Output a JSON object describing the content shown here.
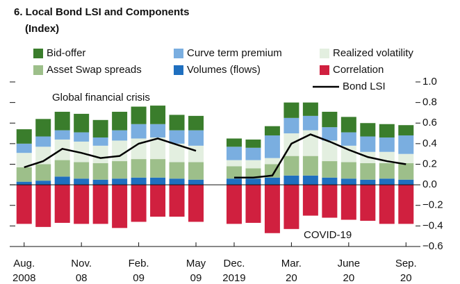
{
  "chart_data": {
    "type": "bar",
    "title": "6. Local Bond LSI and Components",
    "subtitle": "(Index)",
    "annotations": [
      "Global financial crisis",
      "COVID-19"
    ],
    "categories": [
      "Aug.\n2008",
      null,
      null,
      "Nov.\n08",
      null,
      null,
      "Feb.\n09",
      null,
      null,
      "May\n09",
      null,
      "Dec.\n2019",
      null,
      null,
      "Mar.\n20",
      null,
      null,
      "June\n20",
      null,
      null,
      "Sep.\n20"
    ],
    "ylim": [
      -0.6,
      1.0
    ],
    "yticks": [
      {
        "value": -0.6,
        "label": "−0.6"
      },
      {
        "value": -0.4,
        "label": "−0.4"
      },
      {
        "value": -0.2,
        "label": "−0.2"
      },
      {
        "value": 0,
        "label": "0.0"
      },
      0.2,
      0.4,
      0.6,
      0.8,
      {
        "value": 1,
        "label": "1.0"
      }
    ],
    "series": [
      {
        "name": "Volumes (flows)",
        "color": "#1f6fbf",
        "values": [
          0.03,
          0.04,
          0.08,
          0.06,
          0.05,
          0.06,
          0.07,
          0.07,
          0.06,
          0.05,
          null,
          0.06,
          0.06,
          0.07,
          0.09,
          0.09,
          0.07,
          0.06,
          0.05,
          0.06,
          0.05
        ]
      },
      {
        "name": "Asset Swap spreads",
        "color": "#9dbf8a",
        "values": [
          0.14,
          0.16,
          0.16,
          0.16,
          0.16,
          0.17,
          0.18,
          0.18,
          0.16,
          0.17,
          null,
          0.12,
          0.1,
          0.13,
          0.19,
          0.19,
          0.16,
          0.16,
          0.16,
          0.15,
          0.16
        ]
      },
      {
        "name": "Realized volatility",
        "color": "#e3efe0",
        "values": [
          0.14,
          0.17,
          0.2,
          0.2,
          0.17,
          0.2,
          0.2,
          0.21,
          0.18,
          0.16,
          null,
          0.06,
          0.08,
          0.06,
          0.22,
          0.25,
          0.2,
          0.16,
          0.11,
          0.11,
          0.09
        ]
      },
      {
        "name": "Curve term premium",
        "color": "#7aaee0",
        "values": [
          0.09,
          0.1,
          0.09,
          0.09,
          0.08,
          0.1,
          0.14,
          0.13,
          0.13,
          0.15,
          null,
          0.13,
          0.12,
          0.22,
          0.15,
          0.14,
          0.13,
          0.13,
          0.15,
          0.14,
          0.18
        ]
      },
      {
        "name": "Bid-offer",
        "color": "#3a7d2c",
        "values": [
          0.14,
          0.17,
          0.18,
          0.18,
          0.17,
          0.18,
          0.17,
          0.18,
          0.15,
          0.14,
          null,
          0.08,
          0.08,
          0.09,
          0.15,
          0.13,
          0.15,
          0.15,
          0.13,
          0.13,
          0.1
        ]
      },
      {
        "name": "Correlation",
        "color": "#d0203f",
        "values": [
          -0.38,
          -0.41,
          -0.37,
          -0.38,
          -0.38,
          -0.42,
          -0.36,
          -0.31,
          -0.31,
          -0.36,
          null,
          -0.38,
          -0.37,
          -0.47,
          -0.43,
          -0.3,
          -0.32,
          -0.34,
          -0.35,
          -0.38,
          -0.38
        ]
      },
      {
        "name": "Bond LSI",
        "type": "line",
        "color": "#000000",
        "values": [
          0.17,
          0.23,
          0.35,
          0.31,
          0.26,
          0.28,
          0.4,
          0.45,
          0.39,
          0.33,
          null,
          0.07,
          0.07,
          0.09,
          0.4,
          0.49,
          0.42,
          0.34,
          0.27,
          0.23,
          0.2
        ]
      }
    ]
  }
}
